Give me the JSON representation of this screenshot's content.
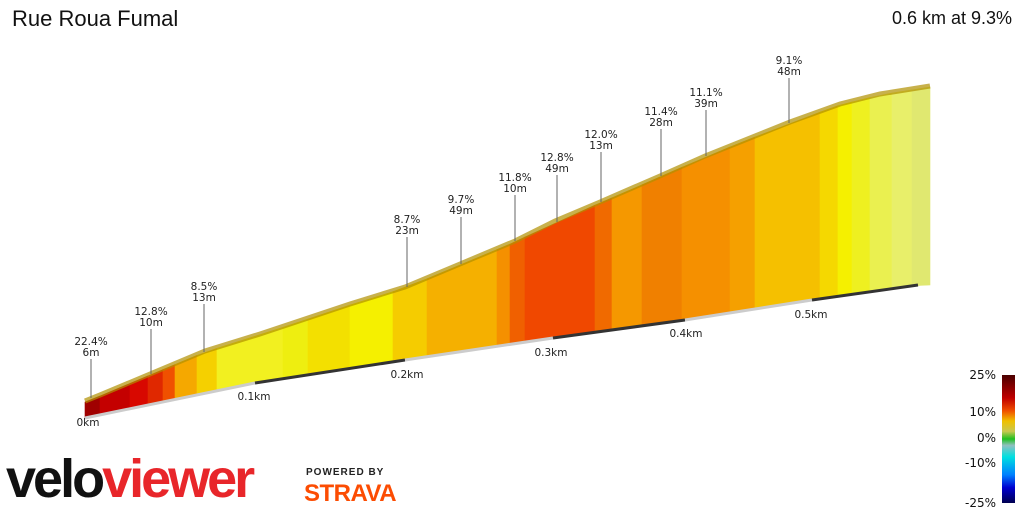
{
  "header": {
    "title": "Rue Roua Fumal",
    "summary": "0.6 km at 9.3%"
  },
  "chart_data": {
    "type": "area",
    "title": "Rue Roua Fumal",
    "distance_ticks": [
      "0km",
      "0.1km",
      "0.2km",
      "0.3km",
      "0.4km",
      "0.5km"
    ],
    "annotations": [
      {
        "grade": "22.4%",
        "length": "6m"
      },
      {
        "grade": "12.8%",
        "length": "10m"
      },
      {
        "grade": "8.5%",
        "length": "13m"
      },
      {
        "grade": "8.7%",
        "length": "23m"
      },
      {
        "grade": "9.7%",
        "length": "49m"
      },
      {
        "grade": "11.8%",
        "length": "10m"
      },
      {
        "grade": "12.8%",
        "length": "49m"
      },
      {
        "grade": "12.0%",
        "length": "13m"
      },
      {
        "grade": "11.4%",
        "length": "28m"
      },
      {
        "grade": "11.1%",
        "length": "39m"
      },
      {
        "grade": "9.1%",
        "length": "48m"
      }
    ],
    "color_scale": {
      "labels": [
        "25%",
        "10%",
        "0%",
        "-10%",
        "-25%"
      ]
    }
  },
  "branding": {
    "logo_left": "velo",
    "logo_right": "viewer",
    "powered_by": "POWERED BY",
    "partner": "STRAVA"
  }
}
